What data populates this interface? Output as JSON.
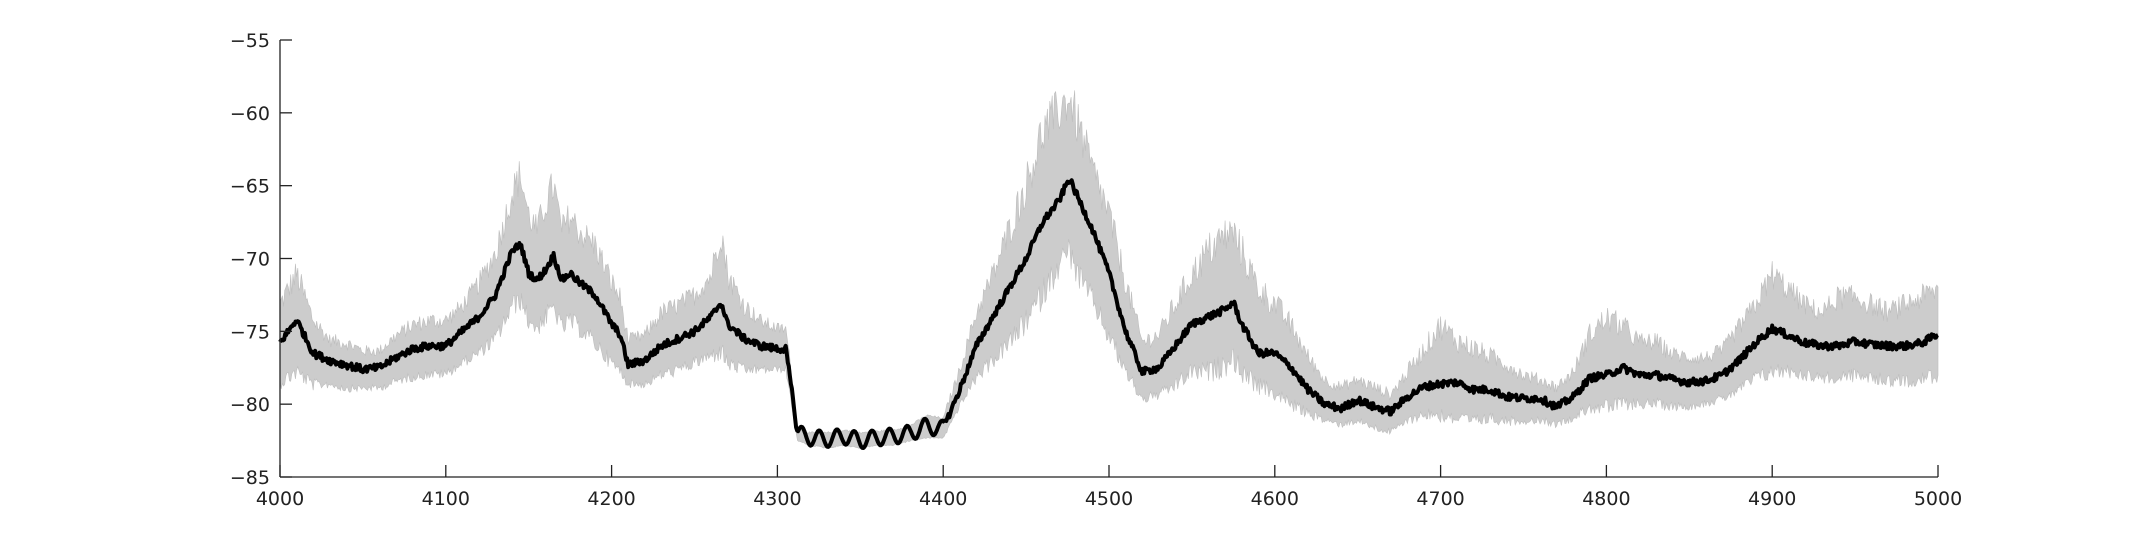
{
  "chart_data": {
    "type": "line",
    "title": "",
    "xlabel": "",
    "ylabel": "",
    "xlim": [
      4000,
      5000
    ],
    "ylim": [
      -85,
      -55
    ],
    "grid": false,
    "legend": "none",
    "xticks": [
      4000,
      4100,
      4200,
      4300,
      4400,
      4500,
      4600,
      4700,
      4800,
      4900,
      5000
    ],
    "yticks": [
      -55,
      -60,
      -65,
      -70,
      -75,
      -80,
      -85
    ],
    "xtick_labels": [
      "4000",
      "4100",
      "4200",
      "4300",
      "4400",
      "4500",
      "4600",
      "4700",
      "4800",
      "4900",
      "5000"
    ],
    "ytick_labels": [
      "−55",
      "−60",
      "−65",
      "−70",
      "−75",
      "−80",
      "−85"
    ],
    "colors": {
      "mean_line": "#000000",
      "band_fill": "#cccccc",
      "axis": "#222222"
    },
    "series": [
      {
        "role": "mean",
        "x": [
          4000,
          4010,
          4020,
          4030,
          4040,
          4050,
          4060,
          4070,
          4080,
          4090,
          4100,
          4110,
          4120,
          4130,
          4140,
          4145,
          4150,
          4155,
          4160,
          4165,
          4170,
          4175,
          4180,
          4190,
          4200,
          4205,
          4210,
          4220,
          4230,
          4240,
          4250,
          4260,
          4266,
          4270,
          4280,
          4290,
          4300,
          4305,
          4308,
          4312,
          4320,
          4330,
          4340,
          4350,
          4360,
          4370,
          4380,
          4390,
          4400,
          4410,
          4420,
          4430,
          4440,
          4450,
          4460,
          4470,
          4476,
          4480,
          4490,
          4500,
          4510,
          4520,
          4530,
          4540,
          4550,
          4560,
          4570,
          4575,
          4580,
          4590,
          4600,
          4610,
          4620,
          4630,
          4640,
          4650,
          4660,
          4670,
          4680,
          4690,
          4700,
          4710,
          4720,
          4730,
          4740,
          4750,
          4760,
          4770,
          4780,
          4790,
          4800,
          4810,
          4820,
          4830,
          4840,
          4850,
          4860,
          4870,
          4880,
          4890,
          4900,
          4910,
          4920,
          4930,
          4940,
          4950,
          4960,
          4970,
          4980,
          4990,
          5000
        ],
        "values": [
          -75.8,
          -74.2,
          -76.5,
          -77.0,
          -77.3,
          -77.6,
          -77.5,
          -76.8,
          -76.2,
          -76.0,
          -76.0,
          -75.0,
          -74.0,
          -72.5,
          -69.5,
          -69.0,
          -71.0,
          -71.5,
          -70.8,
          -69.8,
          -71.5,
          -71.0,
          -71.6,
          -72.5,
          -74.5,
          -75.2,
          -77.3,
          -77.0,
          -76.0,
          -75.5,
          -75.0,
          -74.0,
          -73.0,
          -74.5,
          -75.5,
          -76.0,
          -76.2,
          -76.2,
          -78.5,
          -82.0,
          -82.3,
          -82.4,
          -82.2,
          -82.5,
          -82.3,
          -82.2,
          -82.0,
          -81.5,
          -81.7,
          -79.0,
          -76.0,
          -74.0,
          -72.0,
          -70.0,
          -67.5,
          -66.0,
          -64.5,
          -65.5,
          -68.0,
          -71.0,
          -75.0,
          -77.8,
          -77.5,
          -76.0,
          -74.5,
          -74.0,
          -73.5,
          -73.0,
          -74.5,
          -76.5,
          -76.5,
          -77.5,
          -79.0,
          -80.0,
          -80.3,
          -79.7,
          -80.2,
          -80.5,
          -79.5,
          -78.8,
          -78.6,
          -78.5,
          -79.0,
          -79.0,
          -79.5,
          -79.6,
          -79.6,
          -80.2,
          -79.5,
          -78.2,
          -78.0,
          -77.5,
          -78.0,
          -78.0,
          -78.3,
          -78.5,
          -78.4,
          -78.0,
          -77.0,
          -75.8,
          -74.8,
          -75.3,
          -75.8,
          -76.0,
          -76.0,
          -75.7,
          -75.9,
          -76.0,
          -76.0,
          -75.8,
          -75.2
        ],
        "fluctuation": 0.5
      },
      {
        "role": "band",
        "x": [
          4000,
          4010,
          4020,
          4030,
          4040,
          4050,
          4060,
          4070,
          4080,
          4090,
          4100,
          4110,
          4120,
          4130,
          4140,
          4145,
          4150,
          4155,
          4160,
          4165,
          4170,
          4175,
          4180,
          4190,
          4200,
          4205,
          4210,
          4220,
          4230,
          4240,
          4250,
          4260,
          4266,
          4270,
          4280,
          4290,
          4300,
          4305,
          4308,
          4312,
          4320,
          4330,
          4340,
          4350,
          4360,
          4370,
          4380,
          4390,
          4400,
          4410,
          4420,
          4430,
          4440,
          4450,
          4460,
          4470,
          4476,
          4480,
          4490,
          4500,
          4510,
          4520,
          4530,
          4540,
          4550,
          4560,
          4570,
          4575,
          4580,
          4590,
          4600,
          4610,
          4620,
          4630,
          4640,
          4650,
          4660,
          4670,
          4680,
          4690,
          4700,
          4710,
          4720,
          4730,
          4740,
          4750,
          4760,
          4770,
          4780,
          4790,
          4800,
          4810,
          4820,
          4830,
          4840,
          4850,
          4860,
          4870,
          4880,
          4890,
          4900,
          4910,
          4920,
          4930,
          4940,
          4950,
          4960,
          4970,
          4980,
          4990,
          5000
        ],
        "upper": [
          -73.5,
          -71.5,
          -74.5,
          -75.8,
          -76.0,
          -76.5,
          -76.5,
          -75.5,
          -74.8,
          -74.5,
          -74.5,
          -73.5,
          -72.0,
          -70.0,
          -66.0,
          -64.8,
          -67.5,
          -68.5,
          -66.8,
          -65.5,
          -68.5,
          -67.5,
          -68.5,
          -69.5,
          -72.0,
          -73.0,
          -75.8,
          -75.5,
          -74.0,
          -73.5,
          -72.8,
          -71.5,
          -68.5,
          -71.5,
          -73.5,
          -74.5,
          -75.0,
          -75.0,
          -77.5,
          -81.8,
          -82.0,
          -82.0,
          -81.8,
          -82.0,
          -81.9,
          -81.8,
          -81.5,
          -80.8,
          -81.0,
          -77.8,
          -74.0,
          -71.5,
          -68.5,
          -65.5,
          -62.0,
          -60.5,
          -59.6,
          -61.0,
          -64.5,
          -67.5,
          -72.0,
          -76.0,
          -75.5,
          -73.5,
          -71.5,
          -70.0,
          -69.0,
          -68.8,
          -70.0,
          -72.5,
          -73.5,
          -75.0,
          -77.0,
          -78.5,
          -79.0,
          -78.5,
          -79.0,
          -79.5,
          -78.0,
          -76.5,
          -75.0,
          -76.0,
          -76.5,
          -77.0,
          -77.5,
          -78.2,
          -78.5,
          -79.0,
          -78.0,
          -75.5,
          -74.5,
          -75.0,
          -76.0,
          -76.0,
          -76.8,
          -77.0,
          -77.0,
          -76.5,
          -75.0,
          -73.5,
          -71.5,
          -72.5,
          -73.5,
          -74.0,
          -73.0,
          -73.0,
          -73.5,
          -74.0,
          -73.5,
          -73.0,
          -72.5
        ],
        "lower": [
          -78.3,
          -77.5,
          -78.5,
          -78.5,
          -78.8,
          -78.8,
          -78.8,
          -78.3,
          -78.0,
          -77.8,
          -77.8,
          -77.0,
          -76.3,
          -75.3,
          -73.0,
          -72.5,
          -74.0,
          -74.5,
          -73.8,
          -73.0,
          -74.5,
          -74.0,
          -74.5,
          -75.5,
          -77.0,
          -77.5,
          -78.5,
          -78.5,
          -77.8,
          -77.5,
          -77.0,
          -76.5,
          -76.0,
          -77.0,
          -77.5,
          -77.5,
          -77.5,
          -77.5,
          -79.5,
          -82.5,
          -82.8,
          -83.0,
          -82.8,
          -83.0,
          -82.8,
          -82.8,
          -82.5,
          -82.3,
          -82.3,
          -80.0,
          -78.0,
          -76.8,
          -75.5,
          -74.0,
          -72.0,
          -70.0,
          -69.0,
          -70.5,
          -72.5,
          -75.0,
          -77.5,
          -79.5,
          -79.2,
          -78.5,
          -77.5,
          -77.5,
          -77.0,
          -76.5,
          -77.5,
          -78.5,
          -79.0,
          -79.8,
          -80.5,
          -81.0,
          -81.3,
          -81.0,
          -81.5,
          -81.8,
          -81.0,
          -80.5,
          -80.5,
          -80.8,
          -81.0,
          -80.8,
          -81.0,
          -81.0,
          -81.0,
          -81.3,
          -80.8,
          -80.0,
          -80.0,
          -79.8,
          -79.8,
          -79.8,
          -80.0,
          -80.0,
          -79.8,
          -79.5,
          -78.8,
          -78.0,
          -77.5,
          -77.5,
          -77.8,
          -78.0,
          -78.0,
          -77.8,
          -78.0,
          -78.2,
          -78.2,
          -78.0,
          -77.8
        ]
      }
    ]
  }
}
